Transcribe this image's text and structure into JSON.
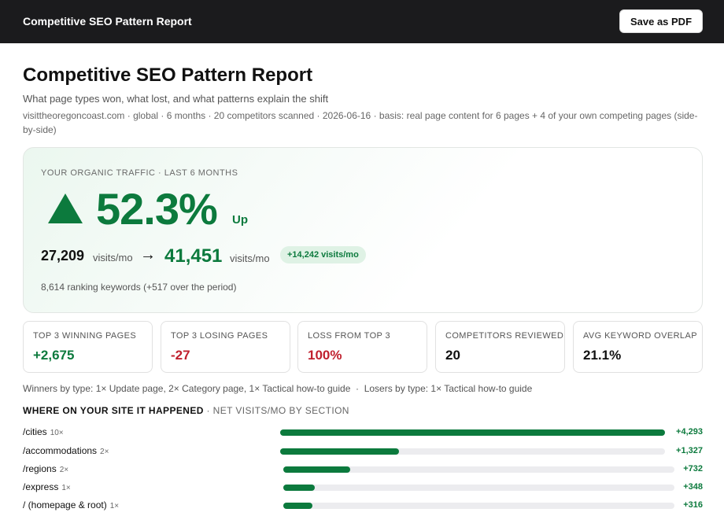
{
  "topbar": {
    "title": "Competitive SEO Pattern Report",
    "save_label": "Save as PDF"
  },
  "header": {
    "title": "Competitive SEO Pattern Report",
    "subtitle": "What page types won, what lost, and what patterns explain the shift",
    "meta": "visittheoregoncoast.com · global · 6 months · 20 competitors scanned · 2026-06-16 · basis: real page content for 6 pages + 4 of your own competing pages (side-by-side)"
  },
  "hero": {
    "label": "YOUR ORGANIC TRAFFIC · LAST 6 MONTHS",
    "icon": "up-triangle-icon",
    "change_pct": "52.3%",
    "direction": "Up",
    "from_visits": "27,209",
    "to_visits": "41,451",
    "unit": "visits/mo",
    "arrow": "→",
    "delta_badge": "+14,242 visits/mo",
    "keywords_line": "8,614 ranking keywords (+517 over the period)"
  },
  "stats": [
    {
      "label": "TOP 3 WINNING PAGES",
      "value": "+2,675",
      "tone": "green"
    },
    {
      "label": "TOP 3 LOSING PAGES",
      "value": "-27",
      "tone": "red"
    },
    {
      "label": "LOSS FROM TOP 3",
      "value": "100%",
      "tone": "red"
    },
    {
      "label": "COMPETITORS REVIEWED",
      "value": "20",
      "tone": "dark"
    },
    {
      "label": "AVG KEYWORD OVERLAP",
      "value": "21.1%",
      "tone": "dark"
    }
  ],
  "type_summary": "Winners by type: 1× Update page, 2× Category page, 1× Tactical how-to guide  ·  Losers by type: 1× Tactical how-to guide",
  "sections_header": {
    "strong": "WHERE ON YOUR SITE IT HAPPENED",
    "light": " · NET VISITS/MO BY SECTION"
  },
  "sections": [
    {
      "path": "/cities",
      "count": "10×",
      "value": 4293,
      "label": "+4,293"
    },
    {
      "path": "/accommodations",
      "count": "2×",
      "value": 1327,
      "label": "+1,327"
    },
    {
      "path": "/regions",
      "count": "2×",
      "value": 732,
      "label": "+732"
    },
    {
      "path": "/express",
      "count": "1×",
      "value": 348,
      "label": "+348"
    },
    {
      "path": "/ (homepage & root)",
      "count": "1×",
      "value": 316,
      "label": "+316"
    }
  ],
  "colors": {
    "accent_green": "#0c7a3d",
    "accent_red": "#c0202e",
    "topbar_bg": "#1b1b1d",
    "track": "#ececef"
  }
}
